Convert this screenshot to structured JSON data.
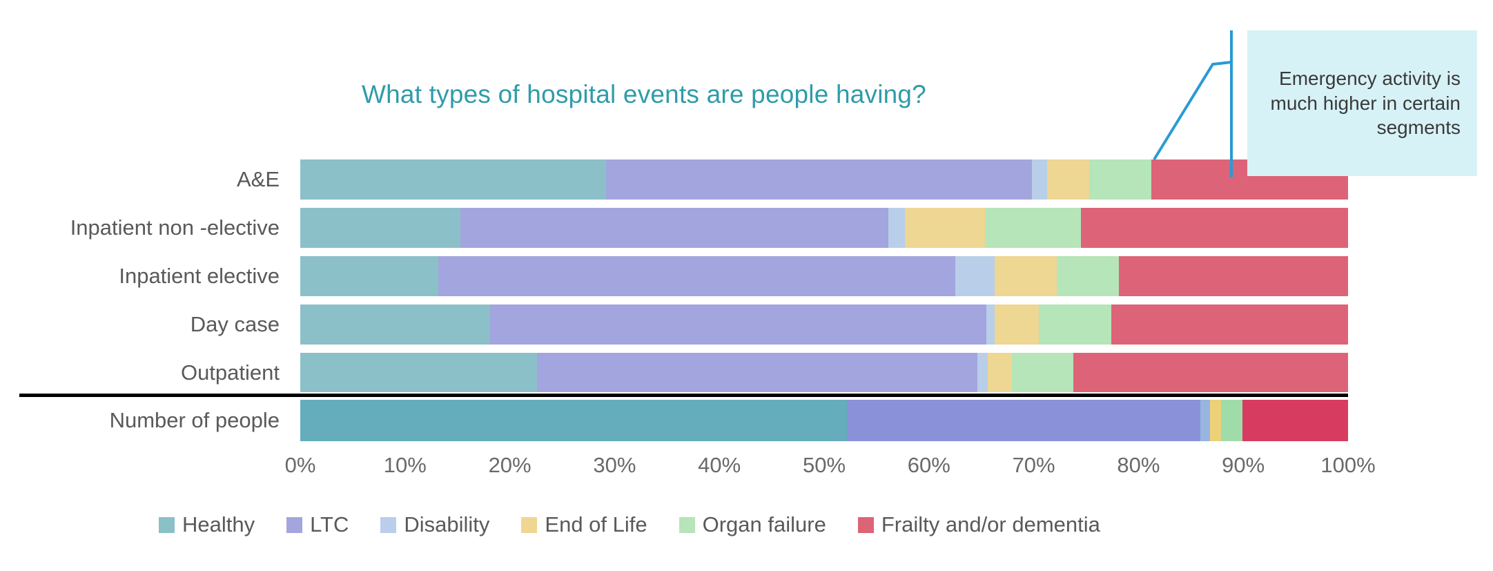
{
  "title": {
    "text": "What types of hospital events are people having?",
    "color": "#2e9ca9"
  },
  "annotation": {
    "text": "Emergency activity is much higher in certain segments",
    "box_color": "#d7f2f6",
    "line_color": "#2a9ad4"
  },
  "axis": {
    "tick_labels": [
      "0%",
      "10%",
      "20%",
      "30%",
      "40%",
      "50%",
      "60%",
      "70%",
      "80%",
      "90%",
      "100%"
    ],
    "range": [
      0,
      100
    ]
  },
  "colors": {
    "label_text": "#595959",
    "separator": "#000000"
  },
  "chart_data": {
    "type": "bar",
    "orientation": "horizontal",
    "stacked": true,
    "unit": "percent",
    "title": "What types of hospital events are people having?",
    "xlabel": "",
    "ylabel": "",
    "xlim": [
      0,
      100
    ],
    "grid": false,
    "legend_position": "bottom",
    "categories": [
      "A&E",
      "Inpatient non -elective",
      "Inpatient elective",
      "Day case",
      "Outpatient",
      "Number of people"
    ],
    "highlight_row": "Number of people",
    "series": [
      {
        "name": "Healthy",
        "color": "#8bc0c9",
        "highlight_color": "#65adbd",
        "values": [
          29.2,
          15.3,
          13.2,
          18.1,
          22.6,
          52.2
        ]
      },
      {
        "name": "LTC",
        "color": "#a3a5de",
        "highlight_color": "#8a91d8",
        "values": [
          40.6,
          40.8,
          49.3,
          47.4,
          42.0,
          33.7
        ]
      },
      {
        "name": "Disability",
        "color": "#b9cee9",
        "highlight_color": "#97b5e0",
        "values": [
          1.5,
          1.6,
          3.8,
          0.8,
          1.0,
          0.9
        ]
      },
      {
        "name": "End of Life",
        "color": "#eed693",
        "highlight_color": "#ecd178",
        "values": [
          4.0,
          7.7,
          5.9,
          4.2,
          2.3,
          1.1
        ]
      },
      {
        "name": "Organ failure",
        "color": "#b5e5b9",
        "highlight_color": "#a0dcaa",
        "values": [
          5.9,
          9.1,
          5.9,
          6.9,
          5.9,
          2.0
        ]
      },
      {
        "name": "Frailty and/or dementia",
        "color": "#dd6379",
        "highlight_color": "#d83b60",
        "values": [
          18.8,
          25.5,
          21.9,
          22.6,
          26.2,
          10.1
        ]
      }
    ]
  }
}
